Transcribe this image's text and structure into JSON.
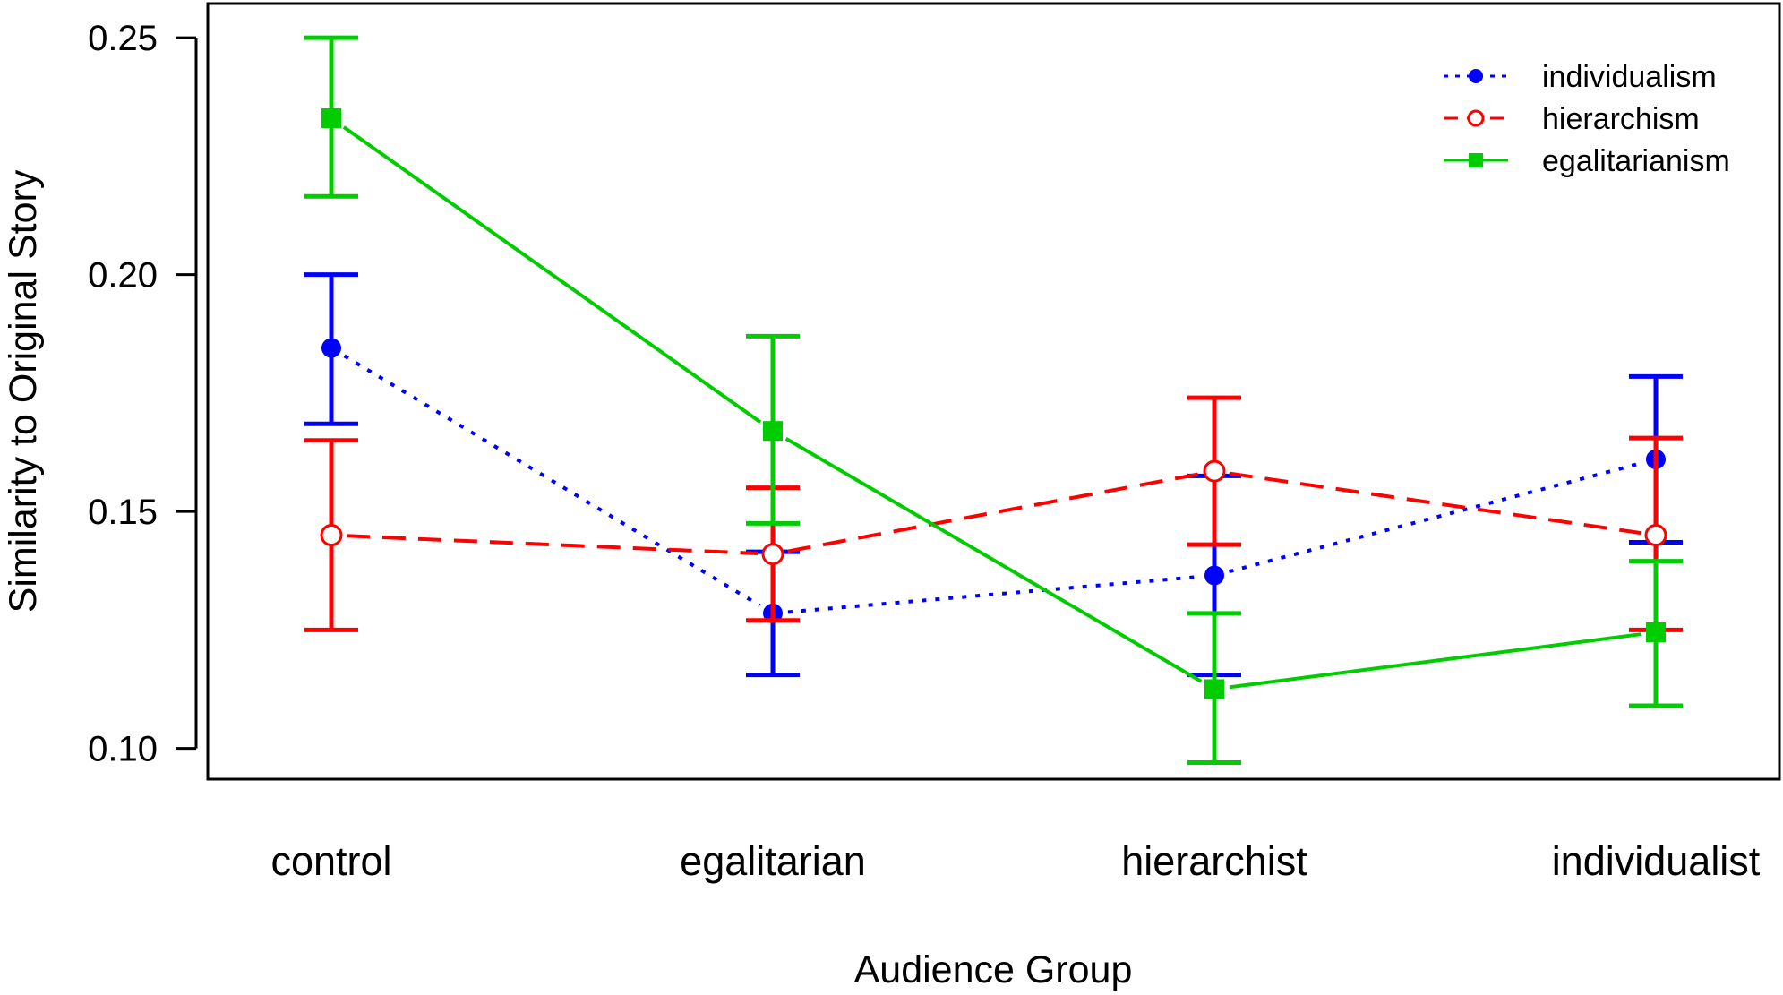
{
  "chart_data": {
    "type": "line",
    "title": "",
    "xlabel": "Audience Group",
    "ylabel": "Similarity to Original Story",
    "categories": [
      "control",
      "egalitarian",
      "hierarchist",
      "individualist"
    ],
    "yticks": [
      "0.10",
      "0.15",
      "0.20",
      "0.25"
    ],
    "ylim": [
      0.0935,
      0.2572
    ],
    "grid": false,
    "legend_position": "top-right",
    "series": [
      {
        "name": "individualism",
        "color": "#0000ff",
        "line_style": "dotted",
        "marker": "filled-circle",
        "values": [
          0.1845,
          0.1285,
          0.1365,
          0.161
        ],
        "lower": [
          0.1685,
          0.1155,
          0.1155,
          0.1435
        ],
        "upper": [
          0.2,
          0.1415,
          0.1575,
          0.1785
        ]
      },
      {
        "name": "hierarchism",
        "color": "#ff0000",
        "line_style": "dashed",
        "marker": "open-circle",
        "values": [
          0.145,
          0.141,
          0.1585,
          0.145
        ],
        "lower": [
          0.125,
          0.127,
          0.143,
          0.125
        ],
        "upper": [
          0.165,
          0.155,
          0.174,
          0.1655
        ]
      },
      {
        "name": "egalitarianism",
        "color": "#00cc00",
        "line_style": "solid",
        "marker": "filled-square",
        "values": [
          0.233,
          0.167,
          0.1125,
          0.1245
        ],
        "lower": [
          0.2165,
          0.1475,
          0.097,
          0.109
        ],
        "upper": [
          0.25,
          0.187,
          0.1285,
          0.1395
        ]
      }
    ]
  }
}
